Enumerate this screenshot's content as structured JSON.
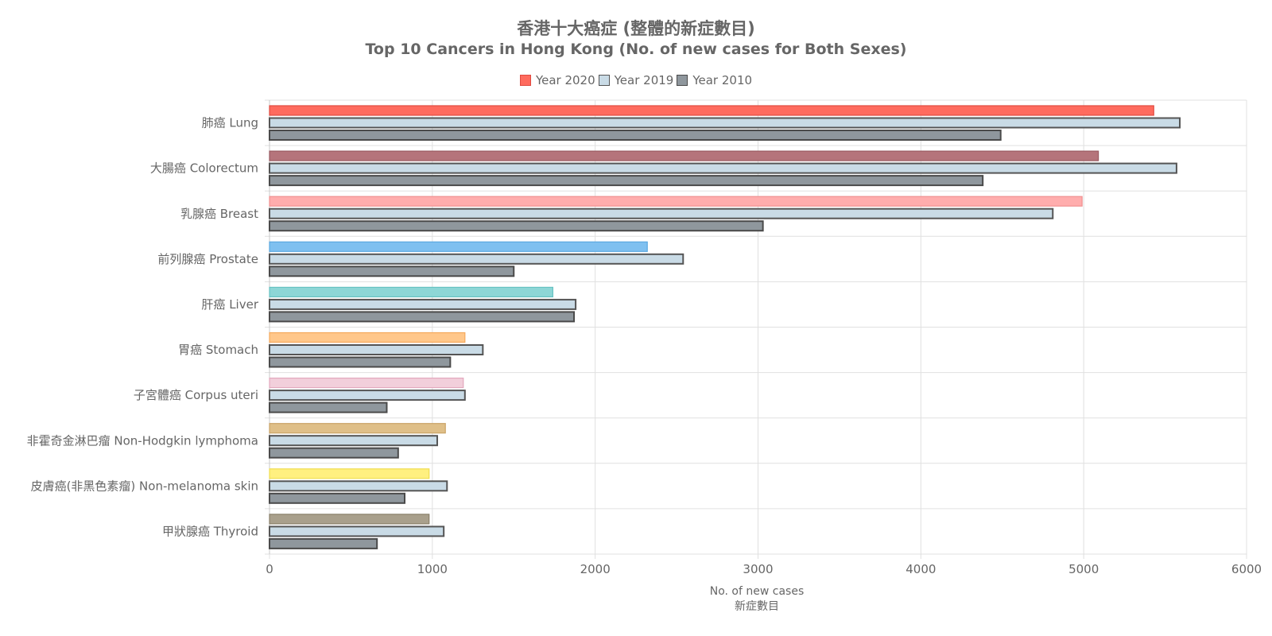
{
  "chart_data": {
    "type": "bar",
    "orientation": "horizontal",
    "title": "香港十大癌症 (整體的新症數目)",
    "subtitle": "Top 10 Cancers in Hong Kong (No. of new cases for Both Sexes)",
    "xlabel": "No. of new cases",
    "xlabel_zh": "新症數目",
    "xlim": [
      0,
      6000
    ],
    "xticks": [
      0,
      1000,
      2000,
      3000,
      4000,
      5000,
      6000
    ],
    "grid": true,
    "legend_position": "top",
    "categories": [
      "肺癌 Lung",
      "大腸癌 Colorectum",
      "乳腺癌 Breast",
      "前列腺癌 Prostate",
      "肝癌 Liver",
      "胃癌 Stomach",
      "子宮體癌 Corpus uteri",
      "非霍奇金淋巴瘤 Non-Hodgkin lymphoma",
      "皮膚癌(非黑色素瘤) Non-melanoma skin",
      "甲狀腺癌 Thyroid"
    ],
    "series": [
      {
        "name": "Year 2020",
        "values": [
          5430,
          5090,
          4990,
          2320,
          1740,
          1200,
          1190,
          1080,
          980,
          980
        ],
        "colors": [
          "#ff6b5e",
          "#b5747b",
          "#ffadad",
          "#7fc0f0",
          "#8dd6d6",
          "#ffc78a",
          "#f2cfdb",
          "#dfbf88",
          "#fff080",
          "#a9a08c"
        ],
        "border_colors": [
          "#e04a40",
          "#9a5a62",
          "#f08f8f",
          "#5aa8e0",
          "#66c2c2",
          "#f5a95c",
          "#e3a8bd",
          "#caa367",
          "#f0de50",
          "#8a806a"
        ],
        "legend_color": "#ff6b5e",
        "legend_border": "#e04a40"
      },
      {
        "name": "Year 2019",
        "values": [
          5590,
          5570,
          4810,
          2540,
          1880,
          1310,
          1200,
          1030,
          1090,
          1070
        ],
        "color": "#c9dbe6",
        "border_color": "#555555"
      },
      {
        "name": "Year 2010",
        "values": [
          4490,
          4380,
          3030,
          1500,
          1870,
          1110,
          720,
          790,
          830,
          660
        ],
        "color": "#8f979d",
        "border_color": "#4a4a4a"
      }
    ]
  }
}
